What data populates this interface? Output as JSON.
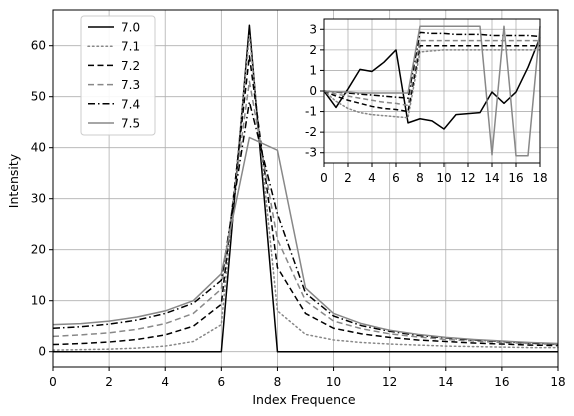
{
  "chart_data": [
    {
      "type": "line",
      "xlabel": "Index Frequence",
      "ylabel": "Intensity",
      "xlim": [
        0,
        18
      ],
      "ylim": [
        -3,
        67
      ],
      "xticks": [
        0,
        2,
        4,
        6,
        8,
        10,
        12,
        14,
        16,
        18
      ],
      "yticks": [
        0,
        10,
        20,
        30,
        40,
        50,
        60
      ],
      "grid": true,
      "legend": "top-left",
      "x": [
        0,
        1,
        2,
        3,
        4,
        5,
        6,
        7,
        8,
        9,
        10,
        11,
        12,
        13,
        14,
        15,
        16,
        17,
        18
      ],
      "series": [
        {
          "name": "7.0",
          "color": "#000000",
          "dash": "solid",
          "values": [
            0,
            0,
            0,
            0,
            0,
            0,
            0,
            64,
            0,
            0,
            0,
            0,
            0,
            0,
            0,
            0,
            0,
            0,
            0
          ]
        },
        {
          "name": "7.1",
          "color": "#888888",
          "dash": "dotted",
          "values": [
            0.3,
            0.4,
            0.5,
            0.7,
            1.1,
            2.0,
            5.3,
            62,
            8,
            3.4,
            2.3,
            1.8,
            1.5,
            1.3,
            1.1,
            1.0,
            0.9,
            0.8,
            0.8
          ]
        },
        {
          "name": "7.2",
          "color": "#000000",
          "dash": "dashed",
          "values": [
            1.4,
            1.6,
            1.9,
            2.4,
            3.3,
            5.0,
            9.3,
            58,
            16.5,
            7.5,
            4.6,
            3.5,
            2.8,
            2.3,
            2.0,
            1.7,
            1.5,
            1.3,
            1.2
          ]
        },
        {
          "name": "7.3",
          "color": "#888888",
          "dash": "dashed",
          "values": [
            3.0,
            3.3,
            3.7,
            4.4,
            5.5,
            7.5,
            12.3,
            53,
            22,
            10,
            6,
            4.5,
            3.5,
            2.9,
            2.4,
            2.1,
            1.8,
            1.6,
            1.4
          ]
        },
        {
          "name": "7.4",
          "color": "#000000",
          "dash": "dashdot",
          "values": [
            4.6,
            4.9,
            5.4,
            6.2,
            7.5,
            9.5,
            14,
            49,
            27,
            11.5,
            7,
            5.1,
            4,
            3.2,
            2.7,
            2.3,
            2,
            1.7,
            1.5
          ]
        },
        {
          "name": "7.5",
          "color": "#888888",
          "dash": "solid",
          "values": [
            5.3,
            5.5,
            6,
            6.8,
            8,
            10,
            15.3,
            42,
            39.5,
            12.5,
            7.5,
            5.5,
            4.2,
            3.4,
            2.8,
            2.4,
            2.1,
            1.8,
            1.6
          ]
        }
      ]
    },
    {
      "type": "line",
      "inset": true,
      "xlim": [
        0,
        18
      ],
      "ylim": [
        -3.5,
        3.5
      ],
      "xticks": [
        0,
        2,
        4,
        6,
        8,
        10,
        12,
        14,
        16,
        18
      ],
      "yticks": [
        -3,
        -2,
        -1,
        0,
        1,
        2,
        3
      ],
      "grid": true,
      "x": [
        0,
        1,
        2,
        3,
        4,
        5,
        6,
        7,
        8,
        9,
        10,
        11,
        12,
        13,
        14,
        15,
        16,
        17,
        18
      ],
      "series": [
        {
          "name": "7.0",
          "color": "#000000",
          "dash": "solid",
          "values": [
            0,
            -0.8,
            0.1,
            1.05,
            0.95,
            1.4,
            2.0,
            -1.55,
            -1.35,
            -1.45,
            -1.85,
            -1.15,
            -1.1,
            -1.05,
            -0.05,
            -0.6,
            -0.05,
            1.15,
            2.6
          ]
        },
        {
          "name": "7.1",
          "color": "#888888",
          "dash": "dotted",
          "values": [
            0,
            -0.5,
            -0.85,
            -1.05,
            -1.15,
            -1.2,
            -1.25,
            -1.3,
            1.9,
            1.95,
            2.0,
            2.0,
            2.0,
            2.0,
            2.0,
            2.0,
            2.0,
            2.0,
            2.0
          ]
        },
        {
          "name": "7.2",
          "color": "#000000",
          "dash": "dashed",
          "values": [
            0,
            -0.25,
            -0.45,
            -0.6,
            -0.75,
            -0.85,
            -0.9,
            -1.0,
            2.2,
            2.2,
            2.2,
            2.2,
            2.2,
            2.2,
            2.2,
            2.2,
            2.2,
            2.2,
            2.2
          ]
        },
        {
          "name": "7.3",
          "color": "#888888",
          "dash": "dashed",
          "values": [
            0,
            -0.15,
            -0.25,
            -0.35,
            -0.45,
            -0.55,
            -0.6,
            -0.7,
            2.45,
            2.45,
            2.45,
            2.45,
            2.45,
            2.45,
            2.45,
            2.45,
            2.45,
            2.45,
            2.45
          ]
        },
        {
          "name": "7.4",
          "color": "#000000",
          "dash": "dashdot",
          "values": [
            0,
            -0.05,
            -0.1,
            -0.15,
            -0.2,
            -0.25,
            -0.3,
            -0.35,
            2.85,
            2.8,
            2.8,
            2.75,
            2.75,
            2.75,
            2.7,
            2.7,
            2.7,
            2.7,
            2.65
          ]
        },
        {
          "name": "7.5",
          "color": "#888888",
          "dash": "solid",
          "values": [
            0,
            -0.05,
            -0.05,
            -0.1,
            -0.1,
            -0.1,
            -0.1,
            -0.1,
            3.15,
            3.15,
            3.15,
            3.15,
            3.15,
            3.15,
            -3.1,
            3.15,
            -3.15,
            -3.15,
            3.15
          ]
        }
      ]
    }
  ]
}
